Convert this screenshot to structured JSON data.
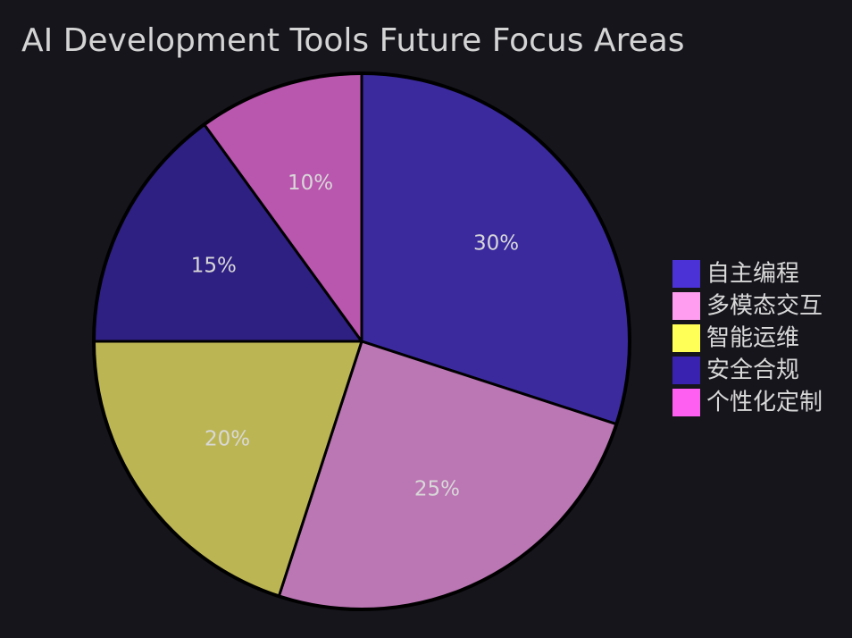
{
  "chart_data": {
    "type": "pie",
    "title": "AI Development Tools Future Focus Areas",
    "categories": [
      "自主编程",
      "多模态交互",
      "智能运维",
      "安全合规",
      "个性化定制"
    ],
    "values": [
      30,
      25,
      20,
      15,
      10
    ],
    "labels": [
      "30%",
      "25%",
      "20%",
      "15%",
      "10%"
    ],
    "slice_colors": [
      "#3a2a9e",
      "#bb76b4",
      "#bcb553",
      "#2e1f82",
      "#b956ae"
    ],
    "legend_colors": [
      "#4a32d6",
      "#ff9ef0",
      "#ffff57",
      "#3a22b0",
      "#ff5ff0"
    ],
    "start": "12 o'clock",
    "direction": "clockwise",
    "legend": {
      "position": "right"
    }
  }
}
